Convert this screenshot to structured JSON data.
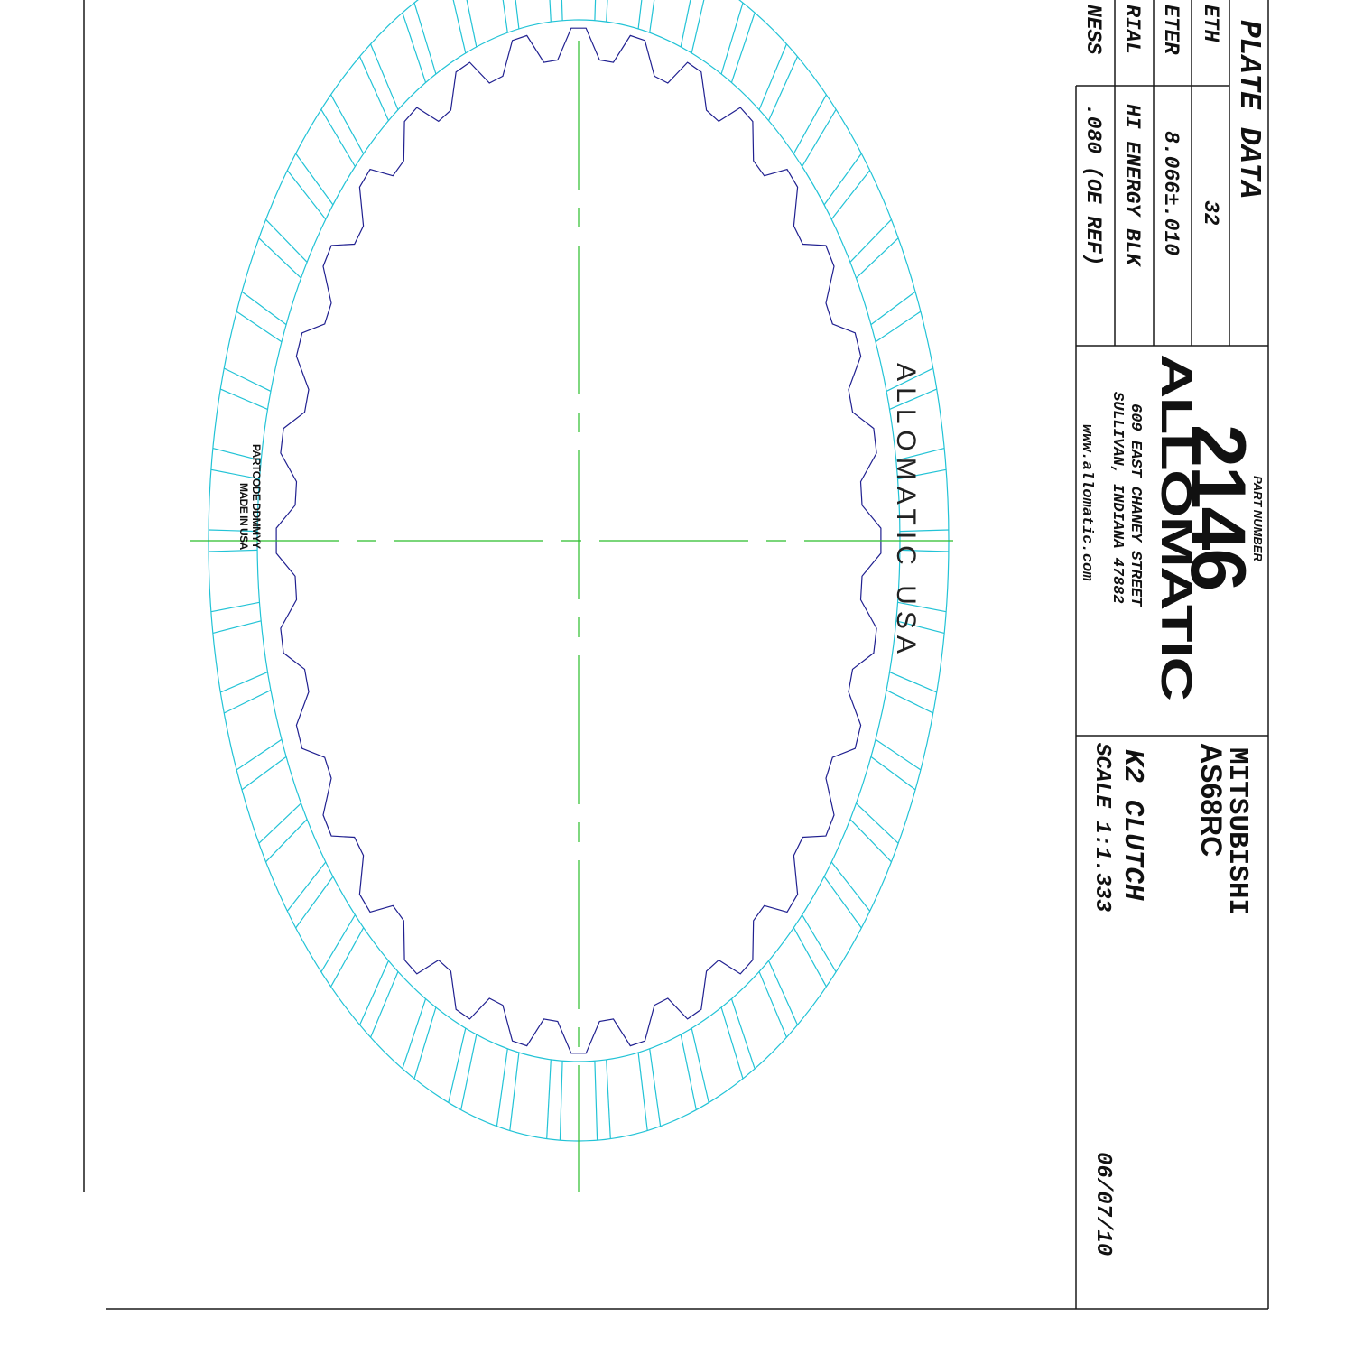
{
  "plate_data": {
    "heading": "PLATE DATA",
    "rows": [
      {
        "label": "ETH",
        "value": "32"
      },
      {
        "label": "ETER",
        "value": "8.066±.010"
      },
      {
        "label": "RIAL",
        "value": "HI ENERGY BLK"
      },
      {
        "label": "NESS",
        "value": ".080 (OE REF)"
      }
    ]
  },
  "part": {
    "label": "PART NUMBER",
    "number": "2146"
  },
  "company": {
    "logo_text": "ALLOMATIC",
    "address_line1": "609 EAST CHANEY STREET",
    "address_line2": "SULLIVAN, INDIANA 47882",
    "website": "www.allomatic.com"
  },
  "application": {
    "make": "MITSUBISHI",
    "model": "AS68RC",
    "component": "K2 CLUTCH",
    "scale": "SCALE 1:1.333",
    "date": "06/07/10"
  },
  "plate_markings": {
    "brand": "ALLOMATIC USA",
    "partcode_line1": "PARTCODE DDMMYY",
    "partcode_line2": "MADE IN USA"
  },
  "colors": {
    "outline": "#1a1a1a",
    "friction": "#22c3d6",
    "spline": "#202090",
    "centerline": "#2bbd2b"
  }
}
